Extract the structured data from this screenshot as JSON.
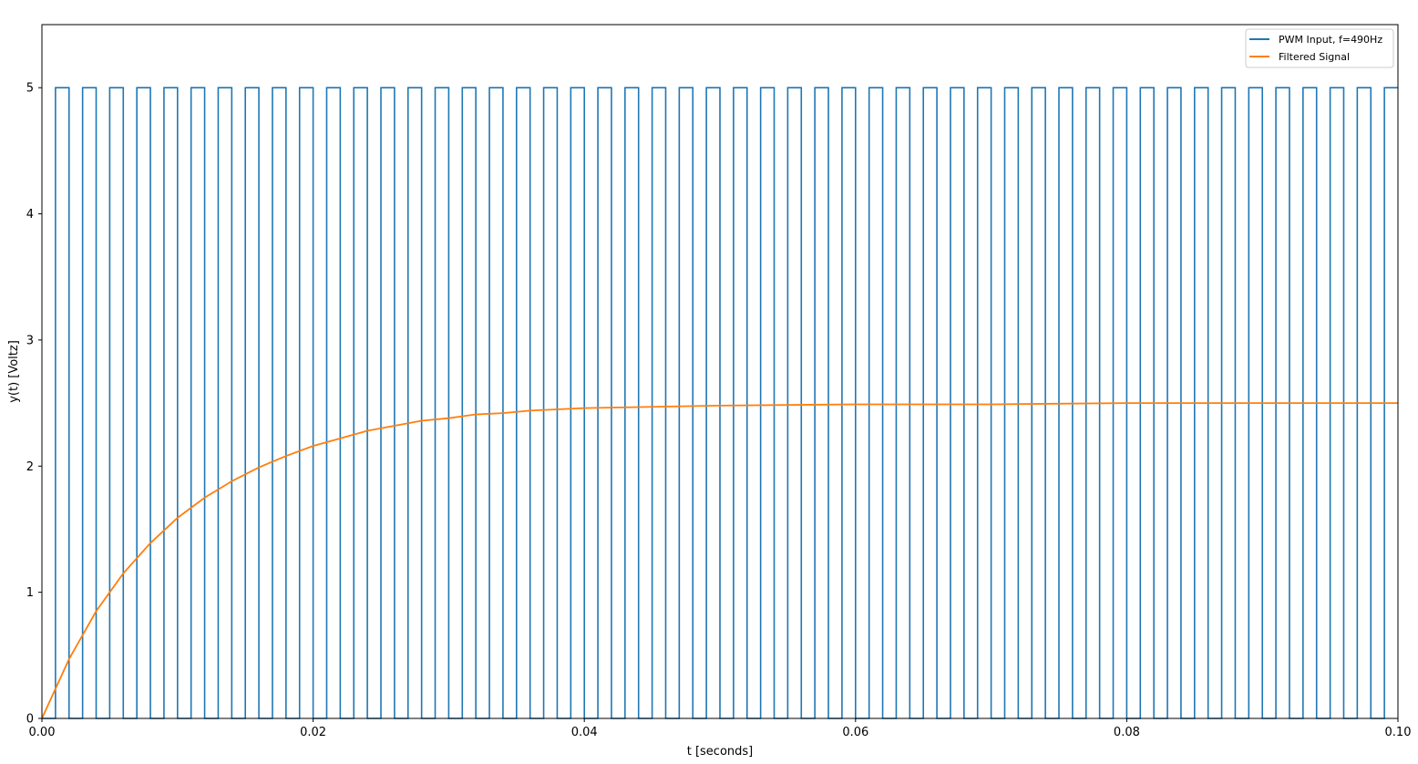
{
  "chart_data": {
    "type": "line",
    "xlabel": "t [seconds]",
    "ylabel": "y(t) [Voltz]",
    "xlim": [
      0,
      0.1
    ],
    "ylim": [
      0,
      5.5
    ],
    "x_ticks": [
      0,
      0.02,
      0.04,
      0.06,
      0.08,
      0.1
    ],
    "x_tick_labels": [
      "0.00",
      "0.02",
      "0.04",
      "0.06",
      "0.08",
      "0.10"
    ],
    "y_ticks": [
      0,
      1,
      2,
      3,
      4,
      5
    ],
    "y_tick_labels": [
      "0",
      "1",
      "2",
      "3",
      "4",
      "5"
    ],
    "grid": false,
    "legend_position": "top-right",
    "series": [
      {
        "name": "PWM Input, f=490Hz",
        "color": "#1f77b4",
        "kind": "square-wave",
        "high": 5,
        "low": 0,
        "period": 0.002,
        "duty_cycle": 0.5,
        "phase_start_high": 0.001
      },
      {
        "name": "Filtered Signal",
        "color": "#ff7f0e",
        "kind": "line",
        "x": [
          0,
          0.002,
          0.004,
          0.006,
          0.008,
          0.01,
          0.012,
          0.014,
          0.016,
          0.018,
          0.02,
          0.022,
          0.024,
          0.026,
          0.028,
          0.03,
          0.032,
          0.034,
          0.036,
          0.038,
          0.04,
          0.045,
          0.05,
          0.06,
          0.07,
          0.08,
          0.09,
          0.1
        ],
        "values": [
          0,
          0.47,
          0.85,
          1.15,
          1.39,
          1.59,
          1.75,
          1.88,
          1.99,
          2.08,
          2.16,
          2.22,
          2.28,
          2.32,
          2.36,
          2.38,
          2.41,
          2.42,
          2.44,
          2.45,
          2.46,
          2.47,
          2.48,
          2.49,
          2.49,
          2.5,
          2.5,
          2.5
        ]
      }
    ]
  }
}
